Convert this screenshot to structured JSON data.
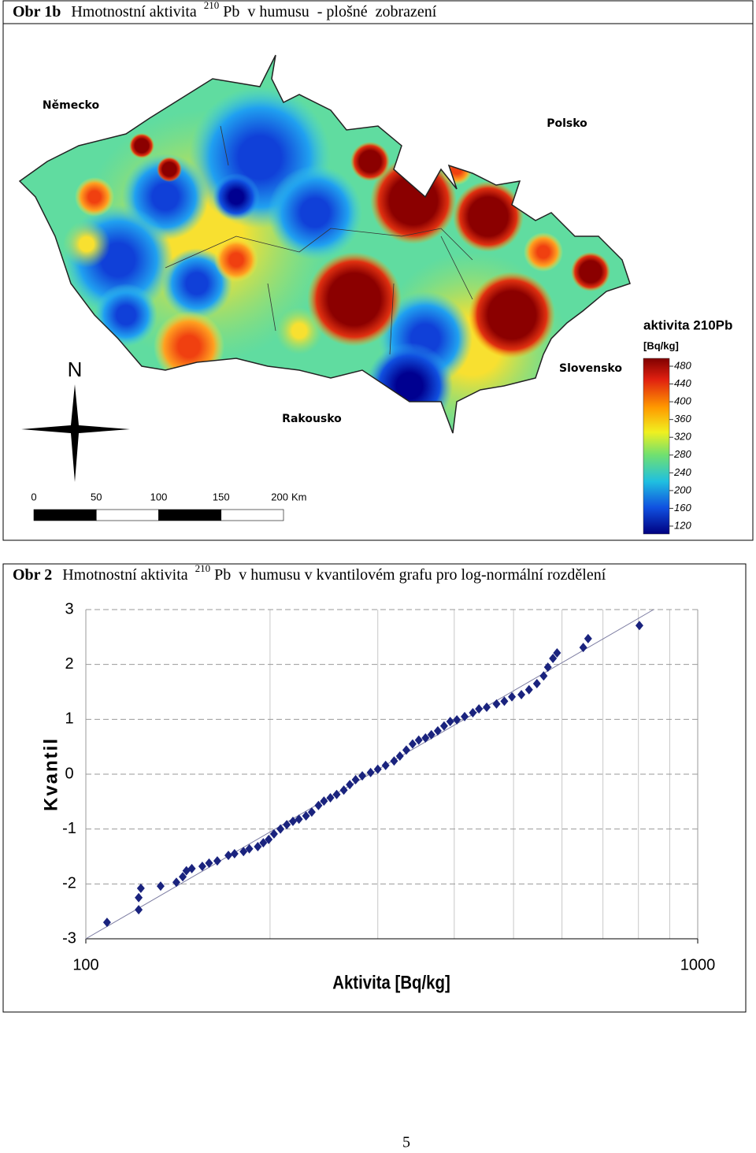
{
  "map": {
    "title": {
      "label": "Obr 1b",
      "text": "Hmotnostní aktivita",
      "sup": "210",
      "rest": "Pb  v humusu  - plošné  zobrazení"
    },
    "labels": [
      "Německo",
      "Polsko",
      "Slovensko",
      "Rakousko"
    ],
    "north": "N",
    "scale": {
      "ticks": [
        0,
        50,
        100,
        150,
        200
      ],
      "unit": "Km"
    },
    "legend": {
      "title": "aktivita 210Pb",
      "unit": "[Bq/kg]",
      "ticks": [
        480,
        440,
        400,
        360,
        320,
        280,
        240,
        200,
        160,
        120
      ]
    }
  },
  "chart_data": {
    "type": "scatter",
    "title": {
      "label": "Obr 2",
      "text": "Hmotnostní aktivita",
      "sup": "210",
      "rest": "Pb  v humusu v kvantilovém grafu pro log-normální rozdělení"
    },
    "x_label": "Aktivita [Bq/kg]",
    "y_label": "Kvantil",
    "xlog": true,
    "xlim": [
      100,
      1000
    ],
    "ylim": [
      -3,
      3
    ],
    "xticks": [
      100,
      1000
    ],
    "xgrid": [
      200,
      300,
      400,
      500,
      600,
      700,
      800,
      900
    ],
    "yticks": [
      3,
      2,
      1,
      0,
      -1,
      -2,
      -3
    ],
    "color": "#1a237e",
    "x": [
      108.3,
      122,
      122,
      123,
      132.5,
      140.6,
      144,
      146,
      149,
      155,
      159,
      164,
      171,
      175,
      181,
      185,
      191,
      195,
      199,
      203,
      208,
      213,
      218,
      223,
      229,
      234,
      240,
      245,
      251,
      257,
      264,
      270,
      276,
      283,
      292,
      300,
      309,
      319,
      326,
      334,
      342,
      350,
      359,
      367,
      376,
      385,
      394,
      404,
      416,
      429,
      439,
      452,
      469,
      483,
      497,
      515,
      530,
      546,
      560,
      569,
      580,
      589,
      650,
      662,
      803
    ],
    "values": [
      -2.7,
      -2.47,
      -2.25,
      -2.08,
      -2.04,
      -1.97,
      -1.87,
      -1.76,
      -1.72,
      -1.68,
      -1.62,
      -1.58,
      -1.48,
      -1.45,
      -1.41,
      -1.36,
      -1.32,
      -1.25,
      -1.19,
      -1.09,
      -1.0,
      -0.92,
      -0.86,
      -0.82,
      -0.76,
      -0.69,
      -0.57,
      -0.49,
      -0.43,
      -0.37,
      -0.29,
      -0.19,
      -0.1,
      -0.03,
      0.03,
      0.09,
      0.16,
      0.24,
      0.33,
      0.44,
      0.55,
      0.62,
      0.66,
      0.72,
      0.79,
      0.88,
      0.96,
      0.99,
      1.05,
      1.12,
      1.19,
      1.22,
      1.28,
      1.33,
      1.41,
      1.45,
      1.54,
      1.65,
      1.79,
      1.95,
      2.11,
      2.21,
      2.31,
      2.47,
      2.71
    ],
    "trendline": {
      "x": [
        100,
        847
      ],
      "y": [
        -3,
        3
      ]
    }
  },
  "page_number": "5"
}
